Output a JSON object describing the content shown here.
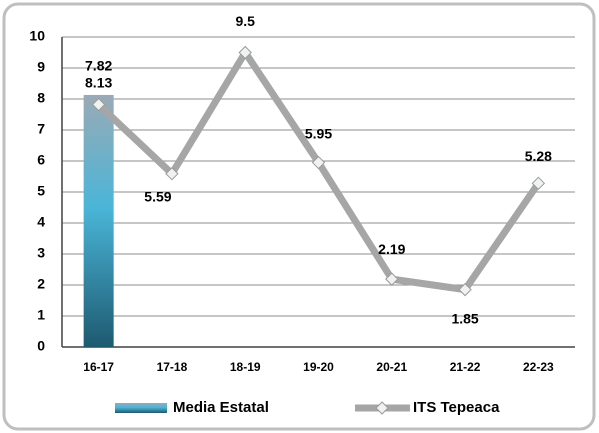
{
  "chart_data": {
    "type": "bar",
    "categories": [
      "16-17",
      "17-18",
      "18-19",
      "19-20",
      "20-21",
      "21-22",
      "22-23"
    ],
    "series": [
      {
        "name": "Media Estatal",
        "type": "bar",
        "color": "#4ab5d8",
        "values": [
          8.13,
          null,
          null,
          null,
          null,
          null,
          null
        ]
      },
      {
        "name": "ITS Tepeaca",
        "type": "line",
        "color": "#a6a6a6",
        "values": [
          7.82,
          5.59,
          9.5,
          5.95,
          2.19,
          1.85,
          5.28
        ]
      }
    ],
    "ylim": [
      0,
      10
    ],
    "yticks": [
      0,
      1,
      2,
      3,
      4,
      5,
      6,
      7,
      8,
      9,
      10
    ],
    "grid": true,
    "legend": "bottom"
  }
}
